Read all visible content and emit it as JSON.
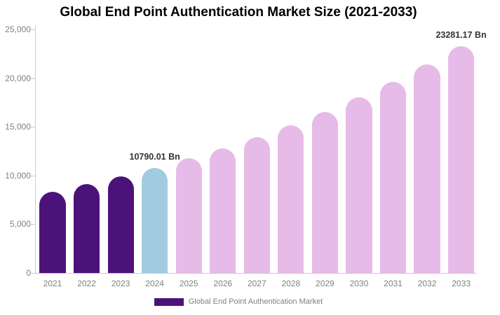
{
  "title": "Global End Point Authentication Market Size (2021-2033)",
  "chart_data": {
    "type": "bar",
    "title": "Global End Point Authentication Market Size (2021-2033)",
    "xlabel": "",
    "ylabel": "",
    "categories": [
      "2021",
      "2022",
      "2023",
      "2024",
      "2025",
      "2026",
      "2027",
      "2028",
      "2029",
      "2030",
      "2031",
      "2032",
      "2033"
    ],
    "values": [
      8350,
      9095,
      9906,
      10790.01,
      11752,
      12801,
      13943,
      15186,
      16541,
      18016,
      19623,
      21373,
      23281.17
    ],
    "bar_groups": [
      "history",
      "history",
      "history",
      "current",
      "forecast",
      "forecast",
      "forecast",
      "forecast",
      "forecast",
      "forecast",
      "forecast",
      "forecast",
      "forecast"
    ],
    "annotations": [
      {
        "year": "2024",
        "text": "10790.01 Bn"
      },
      {
        "year": "2033",
        "text": "23281.17 Bn"
      }
    ],
    "ylim": [
      0,
      25000
    ],
    "ytick_values": [
      0,
      5000,
      10000,
      15000,
      20000,
      25000
    ],
    "ytick_labels": [
      "0",
      "5,000",
      "10,000",
      "15,000",
      "20,000",
      "25,000"
    ],
    "grid": false,
    "legend_position": "bottom",
    "legend": [
      {
        "label": "Global End Point Authentication Market",
        "color": "#4b137a"
      }
    ],
    "colors": {
      "history": "#4b137a",
      "current": "#a2cbe0",
      "forecast": "#e6bbe8"
    }
  },
  "style_colors": {
    "axis": "#cccccc",
    "tick_text": "#808080",
    "annotation_text": "#333333",
    "title_text": "#000000"
  }
}
